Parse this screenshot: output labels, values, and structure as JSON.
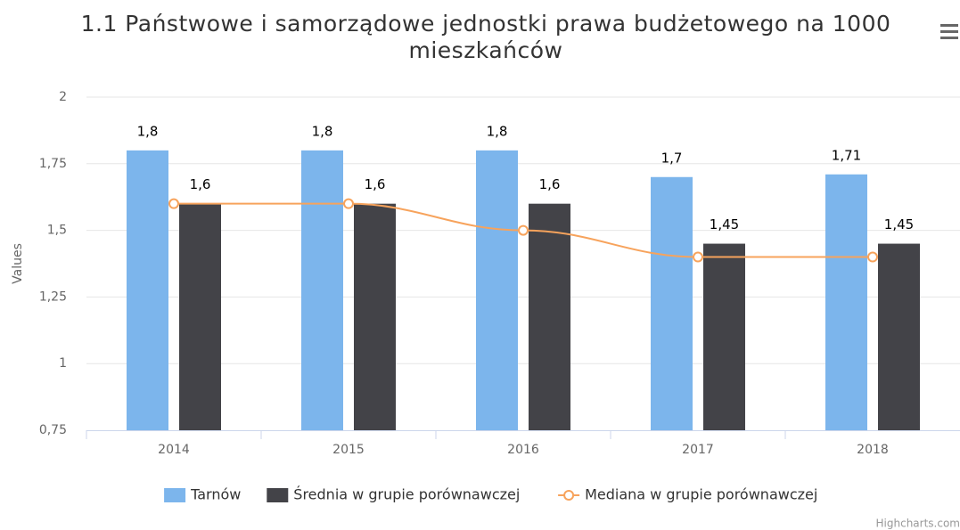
{
  "chart_data": {
    "type": "bar",
    "title": "1.1 Państwowe i samorządowe jednostki prawa budżetowego na 1000 mieszkańców",
    "y_axis_label": "Values",
    "categories": [
      "2014",
      "2015",
      "2016",
      "2017",
      "2018"
    ],
    "series": [
      {
        "name": "Tarnów",
        "type": "bar",
        "color": "#7cb5ec",
        "values": [
          1.8,
          1.8,
          1.8,
          1.7,
          1.71
        ],
        "value_labels": [
          "1,8",
          "1,8",
          "1,8",
          "1,7",
          "1,71"
        ]
      },
      {
        "name": "Średnia w grupie porównawczej",
        "type": "bar",
        "color": "#434348",
        "values": [
          1.6,
          1.6,
          1.6,
          1.45,
          1.45
        ],
        "value_labels": [
          "1,6",
          "1,6",
          "1,6",
          "1,45",
          "1,45"
        ]
      },
      {
        "name": "Mediana w grupie porównawczej",
        "type": "line",
        "color": "#f7a35c",
        "values": [
          1.6,
          1.6,
          1.5,
          1.4,
          1.4
        ]
      }
    ],
    "ylim": [
      0.75,
      2
    ],
    "yticks": [
      {
        "value": 0.75,
        "label": "0,75"
      },
      1,
      {
        "value": 1.25,
        "label": "1,25"
      },
      {
        "value": 1.5,
        "label": "1,5"
      },
      {
        "value": 1.75,
        "label": "1,75"
      },
      2
    ],
    "grid": true,
    "legend": "bottom",
    "credits": "Highcharts.com"
  }
}
